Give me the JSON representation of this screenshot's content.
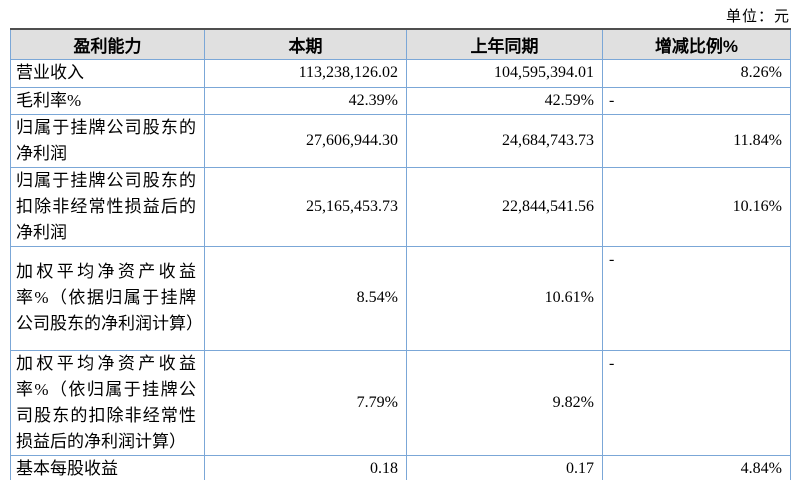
{
  "page": {
    "unit_label": "单位：元"
  },
  "table": {
    "columns": [
      "盈利能力",
      "本期",
      "上年同期",
      "增减比例%"
    ],
    "rows": [
      {
        "label": "营业收入",
        "current": "113,238,126.02",
        "prior": "104,595,394.01",
        "change": "8.26%"
      },
      {
        "label": "毛利率%",
        "current": "42.39%",
        "prior": "42.59%",
        "change": "-"
      },
      {
        "label": "归属于挂牌公司股东的净利润",
        "current": "27,606,944.30",
        "prior": "24,684,743.73",
        "change": "11.84%"
      },
      {
        "label": "归属于挂牌公司股东的扣除非经常性损益后的净利润",
        "current": "25,165,453.73",
        "prior": "22,844,541.56",
        "change": "10.16%"
      },
      {
        "label": "加权平均净资产收益率%（依据归属于挂牌公司股东的净利润计算）",
        "current": "8.54%",
        "prior": "10.61%",
        "change": "-"
      },
      {
        "label": "加权平均净资产收益率%（依归属于挂牌公司股东的扣除非经常性损益后的净利润计算）",
        "current": "7.79%",
        "prior": "9.82%",
        "change": "-"
      },
      {
        "label": "基本每股收益",
        "current": "0.18",
        "prior": "0.17",
        "change": "4.84%"
      }
    ],
    "colors": {
      "grid_border": "#7ba7d7",
      "outer_border": "#4f4f4f",
      "header_background": "#e0e0e0"
    }
  }
}
